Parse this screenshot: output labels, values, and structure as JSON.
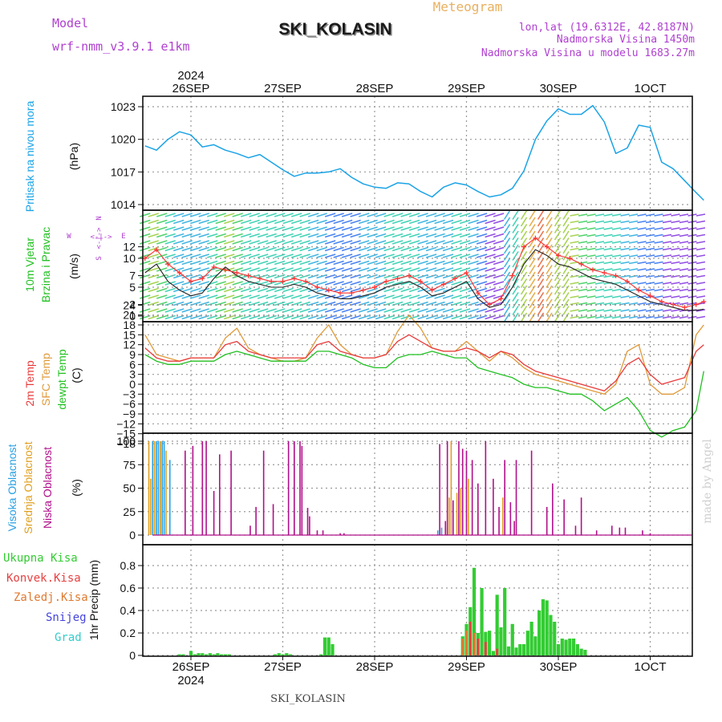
{
  "header": {
    "model_label": "Model",
    "model_name": "wrf-nmm_v3.9.1 e1km",
    "station": "SKI_KOLASIN",
    "product": "Meteogram",
    "coords": "lon,lat (19.6312E, 42.8187N)",
    "elevation": "Nadmorska Visina 1450m",
    "model_elevation": "Nadmorska Visina u modelu 1683.27m",
    "footer_station": "SKI_KOLASIN",
    "credit": "made by Angel"
  },
  "time_axis": {
    "year": "2024",
    "days": [
      "26SEP",
      "27SEP",
      "28SEP",
      "29SEP",
      "30SEP",
      "1OCT"
    ]
  },
  "panels": {
    "pressure": {
      "title": "Pritisak na nivou mora",
      "unit": "(hPa)"
    },
    "wind": {
      "title_1": "10m Vjetar",
      "title_2": "Brzina i Pravac",
      "unit": "(m/s)",
      "compass": [
        "N",
        "W",
        "E",
        "S"
      ]
    },
    "temp": {
      "titles": [
        "2m Temp",
        "SFC Temp",
        "dewpt Temp"
      ],
      "unit": "(C)"
    },
    "cloud": {
      "titles": [
        "Visoka Oblacnost",
        "Srednja Oblacnost",
        "Niska Oblacnost"
      ],
      "unit": "(%)"
    },
    "precip": {
      "legend": [
        "Ukupna Kisa",
        "Konvek.Kisa",
        "Zaledj.Kisa",
        "Snijeg",
        "Grad"
      ],
      "unit": "1hr Precip (mm)"
    }
  },
  "colors": {
    "pressure": "#1aa3e6",
    "wind_mean": "#222222",
    "wind_gust": "#ff3030",
    "temp_2m": "#e83a3a",
    "temp_sfc": "#e09a3a",
    "dewpt": "#22c022",
    "cloud_high": "#2aa0e0",
    "cloud_mid": "#e0a020",
    "cloud_low": "#b0108a",
    "precip_total": "#33cc33",
    "precip_conv": "#e84040",
    "precip_freeze": "#e07a30",
    "precip_snow": "#4444dd",
    "precip_grad": "#33cccc",
    "title": "#1a1a1a",
    "header_purple": "#b040d0",
    "header_orange": "#e8b060"
  },
  "chart_data": [
    {
      "type": "line",
      "name": "pressure",
      "ylabel": "(hPa)",
      "ylim": [
        1014,
        1024
      ],
      "yticks": [
        1014,
        1017,
        1020,
        1023
      ],
      "x_hours_from_26SEP00": [
        -12,
        -9,
        -6,
        -3,
        0,
        3,
        6,
        9,
        12,
        15,
        18,
        21,
        24,
        27,
        30,
        33,
        36,
        39,
        42,
        45,
        48,
        51,
        54,
        57,
        60,
        63,
        66,
        69,
        72,
        75,
        78,
        81,
        84,
        87,
        90,
        93,
        96,
        99,
        102,
        105,
        108,
        111,
        114,
        117,
        120,
        123,
        126,
        129,
        132,
        134
      ],
      "values": [
        1019.4,
        1019.0,
        1020.0,
        1020.7,
        1020.4,
        1019.3,
        1019.5,
        1019.0,
        1018.7,
        1018.3,
        1018.6,
        1017.9,
        1017.2,
        1016.6,
        1016.9,
        1016.9,
        1017.0,
        1017.3,
        1016.5,
        1015.9,
        1015.6,
        1015.5,
        1016.0,
        1015.9,
        1015.2,
        1014.7,
        1015.6,
        1016.0,
        1015.8,
        1015.2,
        1014.7,
        1014.9,
        1015.5,
        1017.1,
        1020.0,
        1021.7,
        1022.8,
        1022.3,
        1022.3,
        1023.1,
        1021.6,
        1018.7,
        1019.2,
        1021.3,
        1021.1,
        1017.9,
        1017.3,
        1016.2,
        1015.1,
        1014.4
      ]
    },
    {
      "type": "line",
      "name": "wind",
      "ylabel": "(m/s)",
      "ylim": [
        0,
        15
      ],
      "yticks": [
        0,
        2,
        5,
        7,
        10,
        12
      ],
      "x_hours_from_26SEP00": [
        -12,
        -9,
        -6,
        -3,
        0,
        3,
        6,
        9,
        12,
        15,
        18,
        21,
        24,
        27,
        30,
        33,
        36,
        39,
        42,
        45,
        48,
        51,
        54,
        57,
        60,
        63,
        66,
        69,
        72,
        75,
        78,
        81,
        84,
        87,
        90,
        93,
        96,
        99,
        102,
        105,
        108,
        111,
        114,
        117,
        120,
        123,
        126,
        129,
        132,
        134
      ],
      "series": [
        {
          "name": "mean",
          "values": [
            7.5,
            9.0,
            6.0,
            4.5,
            3.5,
            4.0,
            6.5,
            8.5,
            7.0,
            6.0,
            5.5,
            5.0,
            5.0,
            5.5,
            5.0,
            4.0,
            3.5,
            3.0,
            3.0,
            3.5,
            4.0,
            5.0,
            5.5,
            6.0,
            5.0,
            3.5,
            4.0,
            5.0,
            6.0,
            3.0,
            1.5,
            2.0,
            5.0,
            9.0,
            11.5,
            10.5,
            9.0,
            8.5,
            7.5,
            6.5,
            6.0,
            5.5,
            4.5,
            3.5,
            2.5,
            2.0,
            1.5,
            1.0,
            1.0,
            1.2
          ]
        },
        {
          "name": "gust",
          "values": [
            10.0,
            11.5,
            9.0,
            7.5,
            6.0,
            6.5,
            8.5,
            8.0,
            7.5,
            7.0,
            6.5,
            6.0,
            6.0,
            6.5,
            6.0,
            5.0,
            4.5,
            4.0,
            4.0,
            4.5,
            5.0,
            6.0,
            6.5,
            7.0,
            6.0,
            4.5,
            5.5,
            6.5,
            7.5,
            4.0,
            2.0,
            3.0,
            7.0,
            12.0,
            13.5,
            12.0,
            10.5,
            10.0,
            9.0,
            8.0,
            7.5,
            7.0,
            6.0,
            4.5,
            3.5,
            2.5,
            2.0,
            1.5,
            2.0,
            2.5
          ]
        }
      ]
    },
    {
      "type": "line",
      "name": "temperature",
      "ylabel": "(C)",
      "ylim": [
        -21,
        24
      ],
      "yticks": [
        -18,
        -15,
        -12,
        -9,
        -6,
        -3,
        0,
        3,
        6,
        9,
        12,
        15,
        18,
        21,
        24
      ],
      "x_hours_from_26SEP00": [
        -12,
        -9,
        -6,
        -3,
        0,
        3,
        6,
        9,
        12,
        15,
        18,
        21,
        24,
        27,
        30,
        33,
        36,
        39,
        42,
        45,
        48,
        51,
        54,
        57,
        60,
        63,
        66,
        69,
        72,
        75,
        78,
        81,
        84,
        87,
        90,
        93,
        96,
        99,
        102,
        105,
        108,
        111,
        114,
        117,
        120,
        123,
        126,
        129,
        132,
        134
      ],
      "series": [
        {
          "name": "2m",
          "values": [
            11,
            8,
            7,
            7,
            8,
            8,
            8,
            12,
            13,
            10,
            9,
            8,
            8,
            8,
            8,
            12,
            13,
            10,
            9,
            8,
            8,
            9,
            13,
            15,
            13,
            11,
            10,
            10,
            11,
            10,
            8,
            10,
            9,
            6,
            4,
            3,
            2,
            1,
            0,
            -1,
            -2,
            1,
            6,
            8,
            3,
            0,
            1,
            2,
            10,
            12
          ]
        },
        {
          "name": "sfc",
          "values": [
            15,
            9,
            8,
            7,
            8,
            8,
            8,
            14,
            17,
            11,
            9,
            8,
            7,
            7,
            8,
            14,
            18,
            12,
            9,
            8,
            8,
            9,
            16,
            21,
            17,
            11,
            10,
            10,
            13,
            10,
            7,
            10,
            8,
            5,
            3,
            2,
            1,
            0,
            -1,
            -2,
            -3,
            0,
            10,
            12,
            0,
            -3,
            -3,
            -1,
            15,
            18
          ]
        },
        {
          "name": "dewpt",
          "values": [
            9,
            7,
            6,
            6,
            7,
            7,
            7,
            9,
            10,
            9,
            8,
            7,
            7,
            7,
            7,
            10,
            10,
            9,
            8,
            6,
            5,
            5,
            8,
            9,
            9,
            10,
            9,
            8,
            8,
            5,
            4,
            3,
            2,
            0,
            -1,
            -1,
            -2,
            -3,
            -3,
            -5,
            -8,
            -6,
            -4,
            -8,
            -14,
            -16,
            -14,
            -13,
            -8,
            4
          ]
        }
      ]
    },
    {
      "type": "bar",
      "name": "cloud_cover",
      "ylabel": "(%)",
      "ylim": [
        0,
        100
      ],
      "yticks": [
        0,
        25,
        50,
        75,
        100
      ],
      "series": [
        {
          "name": "high",
          "x_hours": [
            -10.0,
            -9.5,
            -9.0,
            -8.5,
            -8.0,
            -7.5,
            -7.0,
            -5.5,
            64.5,
            65.5
          ],
          "values": [
            100,
            100,
            100,
            100,
            100,
            100,
            100,
            80,
            5,
            8
          ]
        },
        {
          "name": "mid",
          "x_hours": [
            -11.0,
            -10.5,
            -9.5,
            -8.0,
            -6.5,
            66.5,
            67.5,
            68.0,
            69.5,
            70.5,
            72.5,
            75.0,
            81.5
          ],
          "values": [
            100,
            60,
            100,
            100,
            90,
            8,
            40,
            100,
            45,
            50,
            60,
            35,
            40
          ]
        },
        {
          "name": "low",
          "x_hours": [
            -1.5,
            0.5,
            3.0,
            4.0,
            6.0,
            7.5,
            10.5,
            15.5,
            17.0,
            19.0,
            21.5,
            25.5,
            27.0,
            28.5,
            29.0,
            30.5,
            31.0,
            33.0,
            34.5,
            39.0,
            40.0,
            65.0,
            66.5,
            67.0,
            68.5,
            70.0,
            71.0,
            72.0,
            73.5,
            75.0,
            77.0,
            79.0,
            80.5,
            82.0,
            83.5,
            84.5,
            85.0,
            89.0,
            93.0,
            94.5,
            97.5,
            100.5,
            102.0,
            106.0,
            110.0,
            112.0,
            113.5,
            118.0,
            120.0
          ],
          "values": [
            90,
            95,
            100,
            100,
            47,
            86,
            90,
            10,
            30,
            90,
            33,
            100,
            100,
            100,
            95,
            29,
            20,
            5,
            5,
            2,
            2,
            97,
            15,
            100,
            37,
            100,
            92,
            90,
            80,
            55,
            100,
            60,
            30,
            80,
            35,
            15,
            80,
            90,
            30,
            55,
            38,
            10,
            40,
            5,
            10,
            8,
            8,
            5,
            2
          ]
        }
      ]
    },
    {
      "type": "bar",
      "name": "precipitation",
      "ylabel": "1hr Precip (mm)",
      "ylim": [
        0,
        0.9
      ],
      "yticks": [
        0,
        0.2,
        0.4,
        0.6,
        0.8
      ],
      "series": [
        {
          "name": "total",
          "x_hours": [
            -3,
            -2,
            0,
            1,
            2,
            3,
            4,
            5,
            6,
            7,
            8,
            9,
            10,
            22,
            23,
            24,
            25,
            26,
            34,
            35,
            36,
            37,
            71,
            72,
            73,
            74,
            75,
            76,
            77,
            78,
            79,
            80,
            81,
            82,
            83,
            84,
            85,
            86,
            87,
            88,
            89,
            90,
            91,
            92,
            93,
            94,
            95,
            96,
            97,
            98,
            99,
            100,
            101,
            102,
            103
          ],
          "values": [
            0.01,
            0.01,
            0.04,
            0.01,
            0.02,
            0.02,
            0.01,
            0.02,
            0.01,
            0.02,
            0.01,
            0.01,
            0.01,
            0.01,
            0.02,
            0.01,
            0.02,
            0.01,
            0.01,
            0.16,
            0.16,
            0.1,
            0.17,
            0.28,
            0.43,
            0.78,
            0.2,
            0.6,
            0.21,
            0.22,
            0.04,
            0.54,
            0.25,
            0.6,
            0.08,
            0.28,
            0.07,
            0.1,
            0.1,
            0.22,
            0.3,
            0.17,
            0.4,
            0.5,
            0.49,
            0.36,
            0.3,
            0.1,
            0.15,
            0.14,
            0.15,
            0.15,
            0.1,
            0.06,
            0.05
          ]
        },
        {
          "name": "convective",
          "x_hours": [
            72,
            73,
            75,
            77,
            80
          ],
          "values": [
            0.1,
            0.3,
            0.15,
            0.12,
            0.06
          ]
        },
        {
          "name": "freezing",
          "x_hours": [
            71,
            72,
            74
          ],
          "values": [
            0.15,
            0.22,
            0.2
          ]
        }
      ]
    }
  ]
}
